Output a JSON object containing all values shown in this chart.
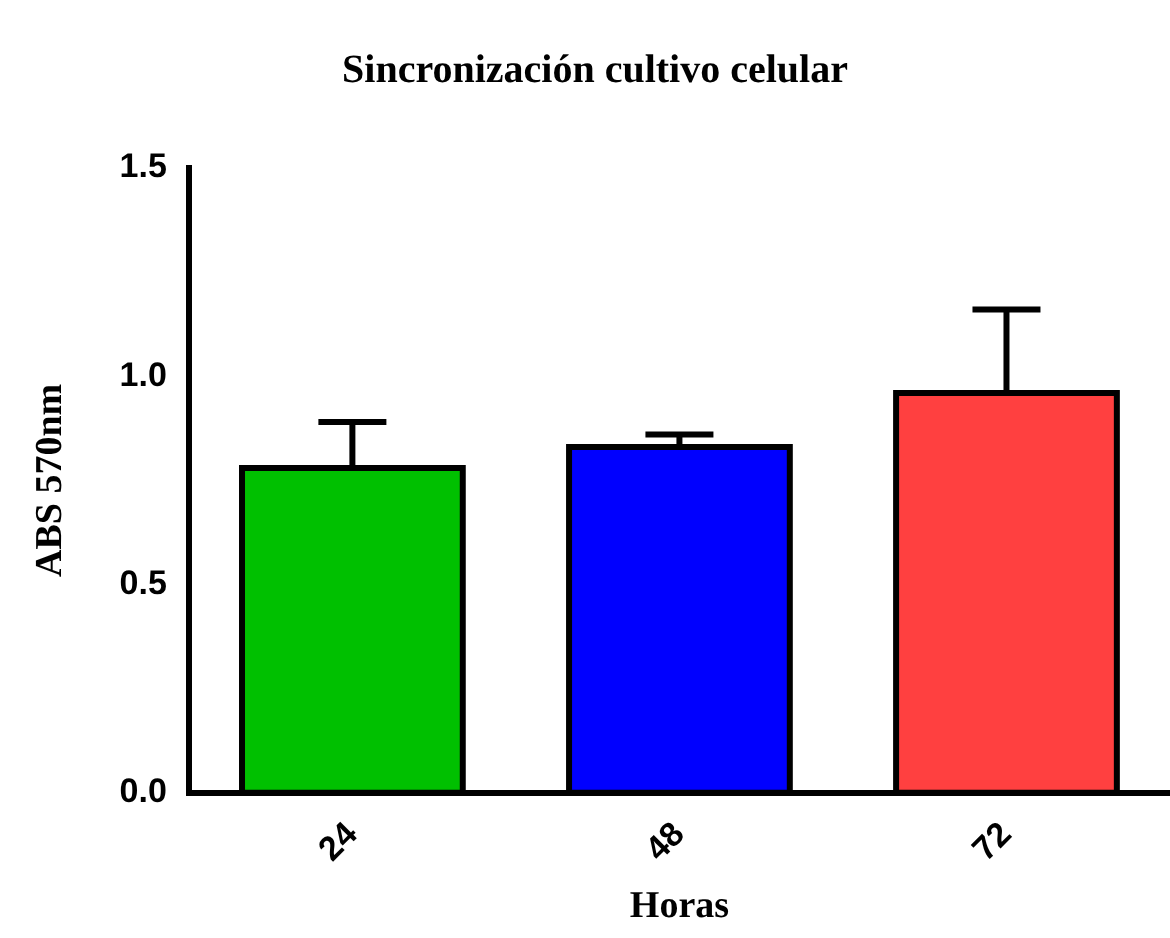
{
  "chart_data": {
    "type": "bar",
    "title": "Sincronización cultivo celular",
    "xlabel": "Horas",
    "ylabel": "ABS 570nm",
    "categories": [
      "24",
      "48",
      "72"
    ],
    "values": [
      0.78,
      0.83,
      0.96
    ],
    "errors": [
      [
        0.78,
        0.89
      ],
      [
        0.83,
        0.86
      ],
      [
        0.96,
        1.16
      ]
    ],
    "colors": [
      "#00c000",
      "#0000ff",
      "#ff4040"
    ],
    "ylim": [
      0,
      1.5
    ],
    "yticks": [
      {
        "value": 0,
        "label": "0.0"
      },
      {
        "value": 0.5,
        "label": "0.5"
      },
      {
        "value": 1,
        "label": "1.0"
      },
      {
        "value": 1.5,
        "label": "1.5"
      }
    ],
    "grid": false,
    "legend": false
  }
}
